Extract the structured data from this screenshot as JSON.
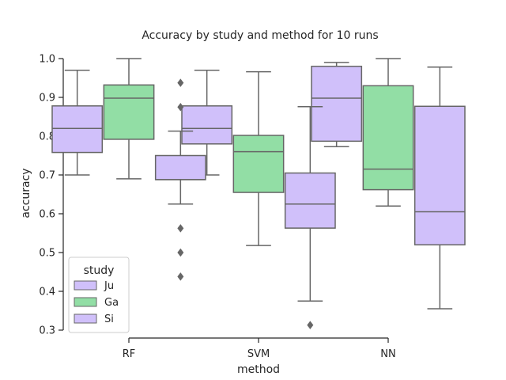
{
  "chart_data": {
    "type": "box",
    "title": "Accuracy by study and method for 10 runs",
    "xlabel": "method",
    "ylabel": "accuracy",
    "categories": [
      "RF",
      "SVM",
      "NN"
    ],
    "ylim": [
      0.3,
      1.0
    ],
    "yticks": [
      0.3,
      0.4,
      0.5,
      0.6,
      0.7,
      0.8,
      0.9,
      1.0
    ],
    "ytick_labels": [
      "0.3",
      "0.4",
      "0.5",
      "0.6",
      "0.7",
      "0.8",
      "0.9",
      "1.0"
    ],
    "grid": false,
    "legend": {
      "title": "study",
      "position": "bottom-left"
    },
    "series": [
      {
        "name": "Ju",
        "color": "#D0C0FA",
        "boxes": [
          {
            "whislo": 0.7,
            "q1": 0.758,
            "median": 0.82,
            "q3": 0.878,
            "whishi": 0.97,
            "fliers": []
          },
          {
            "whislo": 0.7,
            "q1": 0.78,
            "median": 0.82,
            "q3": 0.878,
            "whishi": 0.97,
            "fliers": []
          },
          {
            "whislo": 0.773,
            "q1": 0.787,
            "median": 0.898,
            "q3": 0.98,
            "whishi": 0.99,
            "fliers": []
          }
        ]
      },
      {
        "name": "Ga",
        "color": "#92DEA5",
        "boxes": [
          {
            "whislo": 0.69,
            "q1": 0.792,
            "median": 0.898,
            "q3": 0.932,
            "whishi": 1.0,
            "fliers": []
          },
          {
            "whislo": 0.518,
            "q1": 0.655,
            "median": 0.76,
            "q3": 0.802,
            "whishi": 0.966,
            "fliers": []
          },
          {
            "whislo": 0.62,
            "q1": 0.662,
            "median": 0.715,
            "q3": 0.93,
            "whishi": 1.0,
            "fliers": []
          }
        ]
      },
      {
        "name": "Si",
        "color": "#D0C0FA",
        "boxes": [
          {
            "whislo": 0.625,
            "q1": 0.688,
            "median": 0.688,
            "q3": 0.75,
            "whishi": 0.813,
            "fliers": [
              0.438,
              0.5,
              0.5625,
              0.875,
              0.9375
            ]
          },
          {
            "whislo": 0.375,
            "q1": 0.563,
            "median": 0.625,
            "q3": 0.705,
            "whishi": 0.876,
            "fliers": [
              0.313
            ]
          },
          {
            "whislo": 0.355,
            "q1": 0.52,
            "median": 0.605,
            "q3": 0.877,
            "whishi": 0.978,
            "fliers": []
          }
        ]
      }
    ]
  }
}
